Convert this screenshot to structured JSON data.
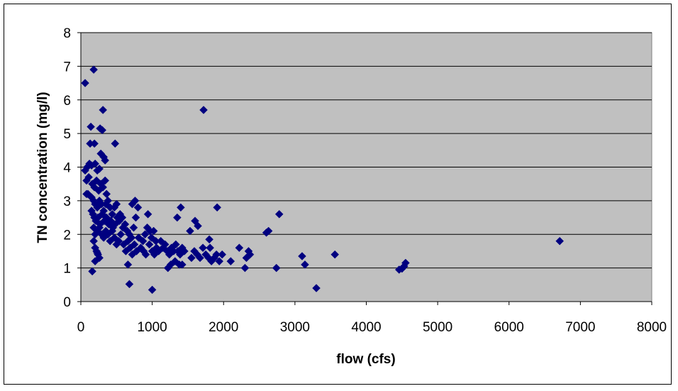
{
  "chart_data": {
    "type": "scatter",
    "title": "",
    "xlabel": "flow  (cfs)",
    "ylabel": "TN concentration (mg/l)",
    "xlim": [
      0,
      8000
    ],
    "ylim": [
      0,
      8
    ],
    "x_ticks": [
      "0",
      "1000",
      "2000",
      "3000",
      "4000",
      "5000",
      "6000",
      "7000",
      "8000"
    ],
    "y_ticks": [
      "0",
      "1",
      "2",
      "3",
      "4",
      "5",
      "6",
      "7",
      "8"
    ],
    "grid": "horizontal",
    "legend": "none",
    "colors": {
      "plot_background": "#c0c0c0",
      "marker": "#000080",
      "gridline": "#000000"
    },
    "marker_shape": "diamond",
    "series": [
      {
        "points": [
          [
            60,
            6.5
          ],
          [
            180,
            6.9
          ],
          [
            310,
            5.7
          ],
          [
            1720,
            5.7
          ],
          [
            140,
            5.2
          ],
          [
            270,
            5.15
          ],
          [
            300,
            5.1
          ],
          [
            480,
            4.7
          ],
          [
            130,
            4.7
          ],
          [
            190,
            4.7
          ],
          [
            280,
            4.4
          ],
          [
            320,
            4.3
          ],
          [
            340,
            4.2
          ],
          [
            60,
            3.9
          ],
          [
            90,
            4.0
          ],
          [
            120,
            4.1
          ],
          [
            150,
            4.05
          ],
          [
            200,
            4.1
          ],
          [
            230,
            3.9
          ],
          [
            260,
            3.95
          ],
          [
            80,
            3.6
          ],
          [
            110,
            3.7
          ],
          [
            160,
            3.5
          ],
          [
            190,
            3.4
          ],
          [
            220,
            3.6
          ],
          [
            250,
            3.3
          ],
          [
            280,
            3.5
          ],
          [
            310,
            3.4
          ],
          [
            340,
            3.6
          ],
          [
            360,
            3.2
          ],
          [
            80,
            3.2
          ],
          [
            100,
            3.2
          ],
          [
            150,
            3.1
          ],
          [
            180,
            3.0
          ],
          [
            200,
            2.9
          ],
          [
            230,
            2.8
          ],
          [
            260,
            3.0
          ],
          [
            290,
            2.9
          ],
          [
            320,
            2.7
          ],
          [
            350,
            2.9
          ],
          [
            380,
            3.0
          ],
          [
            410,
            2.8
          ],
          [
            440,
            2.6
          ],
          [
            470,
            2.8
          ],
          [
            500,
            2.9
          ],
          [
            150,
            2.7
          ],
          [
            170,
            2.6
          ],
          [
            190,
            2.5
          ],
          [
            210,
            2.4
          ],
          [
            240,
            2.5
          ],
          [
            270,
            2.3
          ],
          [
            300,
            2.6
          ],
          [
            330,
            2.4
          ],
          [
            360,
            2.5
          ],
          [
            390,
            2.3
          ],
          [
            420,
            2.4
          ],
          [
            450,
            2.2
          ],
          [
            480,
            2.3
          ],
          [
            510,
            2.5
          ],
          [
            540,
            2.4
          ],
          [
            180,
            2.2
          ],
          [
            200,
            2.0
          ],
          [
            230,
            2.1
          ],
          [
            260,
            2.2
          ],
          [
            290,
            2.0
          ],
          [
            320,
            1.9
          ],
          [
            350,
            2.1
          ],
          [
            380,
            2.0
          ],
          [
            410,
            1.8
          ],
          [
            440,
            2.1
          ],
          [
            470,
            1.9
          ],
          [
            500,
            1.7
          ],
          [
            530,
            1.8
          ],
          [
            560,
            2.0
          ],
          [
            590,
            2.2
          ],
          [
            180,
            1.8
          ],
          [
            200,
            1.6
          ],
          [
            220,
            1.5
          ],
          [
            240,
            1.4
          ],
          [
            260,
            1.3
          ],
          [
            200,
            1.2
          ],
          [
            160,
            0.9
          ],
          [
            230,
            1.45
          ],
          [
            550,
            2.6
          ],
          [
            580,
            2.5
          ],
          [
            620,
            2.3
          ],
          [
            650,
            2.1
          ],
          [
            680,
            2.0
          ],
          [
            710,
            1.9
          ],
          [
            740,
            2.2
          ],
          [
            770,
            2.5
          ],
          [
            800,
            2.8
          ],
          [
            720,
            2.9
          ],
          [
            760,
            3.0
          ],
          [
            600,
            1.7
          ],
          [
            630,
            1.5
          ],
          [
            660,
            1.8
          ],
          [
            690,
            1.6
          ],
          [
            720,
            1.4
          ],
          [
            750,
            1.7
          ],
          [
            780,
            1.5
          ],
          [
            810,
            1.9
          ],
          [
            840,
            1.6
          ],
          [
            870,
            1.8
          ],
          [
            900,
            2.0
          ],
          [
            930,
            2.2
          ],
          [
            960,
            1.7
          ],
          [
            990,
            1.9
          ],
          [
            1020,
            2.1
          ],
          [
            1050,
            1.8
          ],
          [
            880,
            1.5
          ],
          [
            910,
            1.4
          ],
          [
            940,
            2.6
          ],
          [
            970,
            2.1
          ],
          [
            1000,
            1.5
          ],
          [
            1030,
            1.4
          ],
          [
            1060,
            1.6
          ],
          [
            1090,
            1.5
          ],
          [
            1120,
            1.8
          ],
          [
            1150,
            1.6
          ],
          [
            1180,
            1.7
          ],
          [
            1210,
            1.5
          ],
          [
            1240,
            1.4
          ],
          [
            1270,
            1.6
          ],
          [
            1300,
            1.5
          ],
          [
            1330,
            1.7
          ],
          [
            1360,
            1.5
          ],
          [
            1390,
            1.4
          ],
          [
            1420,
            1.6
          ],
          [
            1450,
            1.5
          ],
          [
            1220,
            1.0
          ],
          [
            1260,
            1.1
          ],
          [
            1320,
            1.2
          ],
          [
            1380,
            1.1
          ],
          [
            1420,
            1.1
          ],
          [
            1350,
            2.5
          ],
          [
            1400,
            2.8
          ],
          [
            1530,
            2.1
          ],
          [
            1600,
            2.4
          ],
          [
            1640,
            2.25
          ],
          [
            1550,
            1.3
          ],
          [
            1590,
            1.5
          ],
          [
            1630,
            1.4
          ],
          [
            1670,
            1.3
          ],
          [
            1710,
            1.6
          ],
          [
            1750,
            1.4
          ],
          [
            1790,
            1.3
          ],
          [
            1810,
            1.6
          ],
          [
            1800,
            1.85
          ],
          [
            1830,
            1.2
          ],
          [
            1870,
            1.3
          ],
          [
            1900,
            1.4
          ],
          [
            1940,
            1.2
          ],
          [
            1980,
            1.4
          ],
          [
            1910,
            2.8
          ],
          [
            2100,
            1.2
          ],
          [
            2220,
            1.6
          ],
          [
            2300,
            1.0
          ],
          [
            2320,
            1.3
          ],
          [
            2350,
            1.5
          ],
          [
            2370,
            1.4
          ],
          [
            2600,
            2.05
          ],
          [
            2630,
            2.1
          ],
          [
            2740,
            1.0
          ],
          [
            2780,
            2.6
          ],
          [
            3100,
            1.35
          ],
          [
            3140,
            1.1
          ],
          [
            3300,
            0.4
          ],
          [
            3560,
            1.4
          ],
          [
            4460,
            0.95
          ],
          [
            4500,
            0.98
          ],
          [
            4530,
            1.05
          ],
          [
            4550,
            1.15
          ],
          [
            6710,
            1.8
          ],
          [
            680,
            0.52
          ],
          [
            1000,
            0.35
          ],
          [
            660,
            1.1
          ]
        ]
      }
    ]
  }
}
